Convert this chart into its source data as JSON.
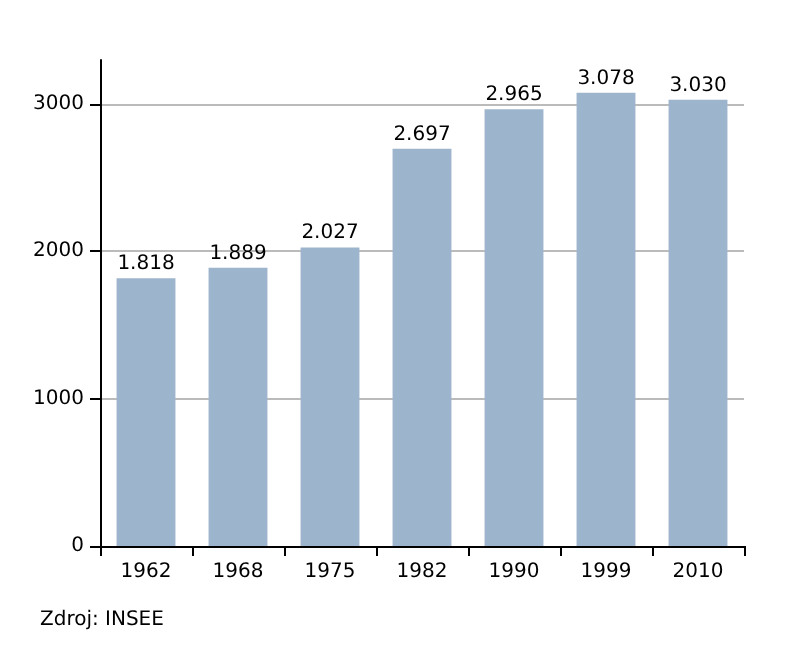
{
  "chart_data": {
    "type": "bar",
    "categories": [
      "1962",
      "1968",
      "1975",
      "1982",
      "1990",
      "1999",
      "2010"
    ],
    "values": [
      1818,
      1889,
      2027,
      2697,
      2965,
      3078,
      3030
    ],
    "value_labels": [
      "1.818",
      "1.889",
      "2.027",
      "2.697",
      "2.965",
      "3.078",
      "3.030"
    ],
    "color": "#9cb4cc",
    "ylim": [
      0,
      3300
    ],
    "yticks": [
      0,
      1000,
      2000,
      3000
    ],
    "grid": "y",
    "annotations": [
      "Zdroj: INSEE"
    ]
  }
}
